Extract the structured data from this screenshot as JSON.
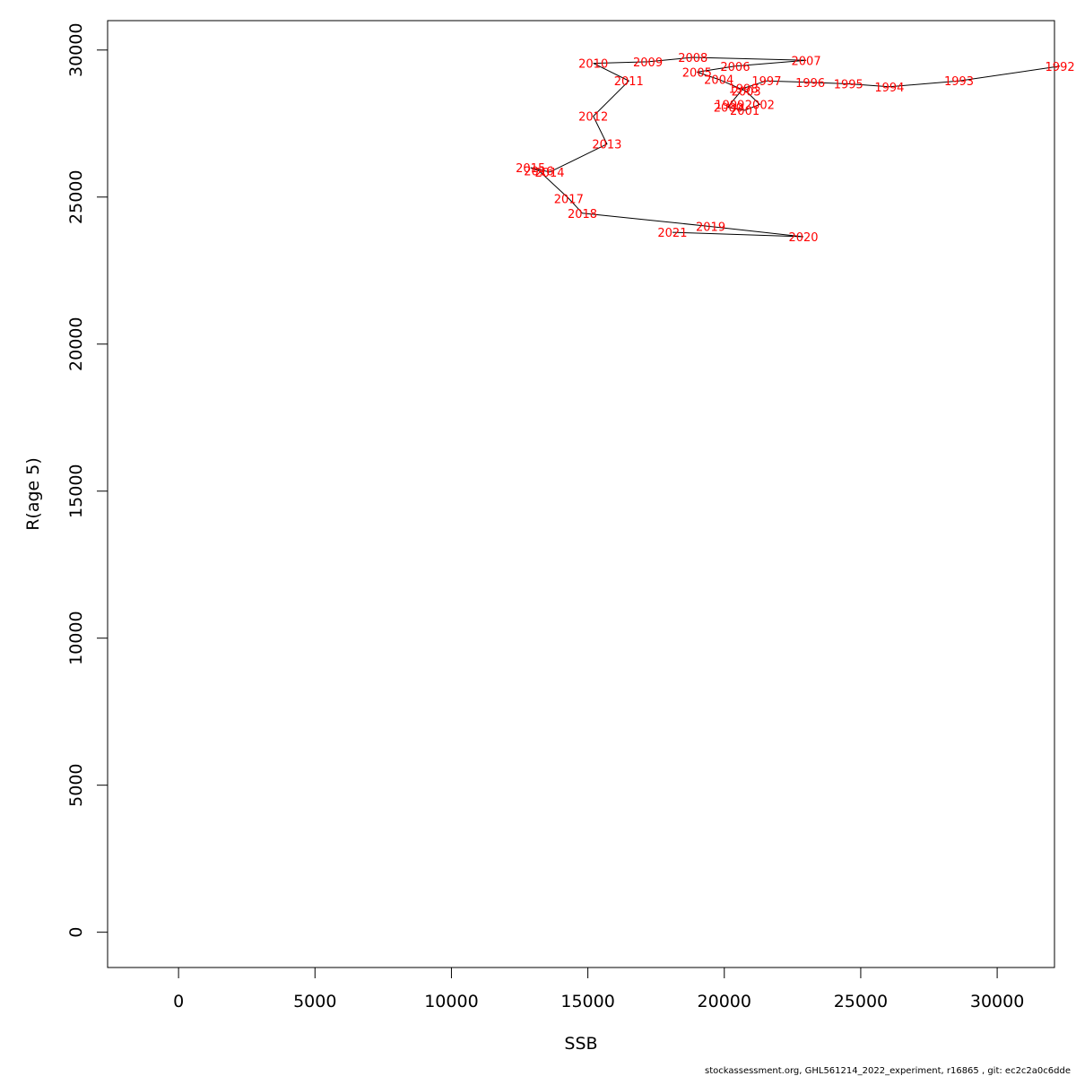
{
  "chart_data": {
    "type": "line",
    "xlabel": "SSB",
    "ylabel": "R(age 5)",
    "xlim": [
      -2600,
      32100
    ],
    "ylim": [
      -1200,
      31000
    ],
    "x_ticks": [
      0,
      5000,
      10000,
      15000,
      20000,
      25000,
      30000
    ],
    "y_ticks": [
      0,
      5000,
      10000,
      15000,
      20000,
      25000,
      30000
    ],
    "x_tick_labels": [
      "0",
      "5000",
      "10000",
      "15000",
      "20000",
      "25000",
      "30000"
    ],
    "y_tick_labels": [
      "0",
      "5000",
      "10000",
      "15000",
      "20000",
      "25000",
      "30000"
    ],
    "grid": false,
    "line_color": "#000000",
    "label_color": "#ff0000",
    "points": [
      {
        "year": "1992",
        "ssb": 32300,
        "r": 29450
      },
      {
        "year": "1993",
        "ssb": 28600,
        "r": 28950
      },
      {
        "year": "1994",
        "ssb": 26050,
        "r": 28750
      },
      {
        "year": "1995",
        "ssb": 24550,
        "r": 28850
      },
      {
        "year": "1996",
        "ssb": 23150,
        "r": 28900
      },
      {
        "year": "1997",
        "ssb": 21550,
        "r": 28950
      },
      {
        "year": "1998",
        "ssb": 20700,
        "r": 28700
      },
      {
        "year": "1999",
        "ssb": 20200,
        "r": 28150
      },
      {
        "year": "2000",
        "ssb": 20150,
        "r": 28050
      },
      {
        "year": "2001",
        "ssb": 20750,
        "r": 27950
      },
      {
        "year": "2002",
        "ssb": 21300,
        "r": 28150
      },
      {
        "year": "2003",
        "ssb": 20800,
        "r": 28600
      },
      {
        "year": "2004",
        "ssb": 19800,
        "r": 29000
      },
      {
        "year": "2005",
        "ssb": 19000,
        "r": 29250
      },
      {
        "year": "2006",
        "ssb": 20400,
        "r": 29450
      },
      {
        "year": "2007",
        "ssb": 23000,
        "r": 29650
      },
      {
        "year": "2008",
        "ssb": 18850,
        "r": 29750
      },
      {
        "year": "2009",
        "ssb": 17200,
        "r": 29600
      },
      {
        "year": "2010",
        "ssb": 15200,
        "r": 29550
      },
      {
        "year": "2011",
        "ssb": 16500,
        "r": 28950
      },
      {
        "year": "2012",
        "ssb": 15200,
        "r": 27750
      },
      {
        "year": "2013",
        "ssb": 15700,
        "r": 26800
      },
      {
        "year": "2014",
        "ssb": 13600,
        "r": 25850
      },
      {
        "year": "2015",
        "ssb": 12900,
        "r": 26000
      },
      {
        "year": "2016",
        "ssb": 13200,
        "r": 25900
      },
      {
        "year": "2017",
        "ssb": 14300,
        "r": 24950
      },
      {
        "year": "2018",
        "ssb": 14800,
        "r": 24450
      },
      {
        "year": "2019",
        "ssb": 19500,
        "r": 24000
      },
      {
        "year": "2020",
        "ssb": 22900,
        "r": 23650
      },
      {
        "year": "2021",
        "ssb": 18100,
        "r": 23800
      }
    ]
  },
  "footer": {
    "text": "stockassessment.org, GHL561214_2022_experiment, r16865 , git: ec2c2a0c6dde"
  }
}
